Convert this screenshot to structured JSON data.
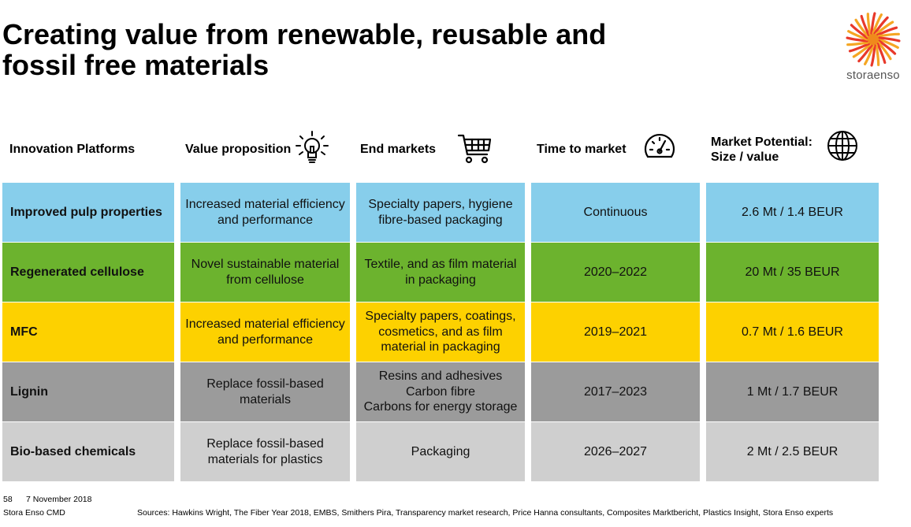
{
  "title": {
    "line1": "Creating value from renewable, reusable and",
    "line2": "fossil free materials"
  },
  "logo": {
    "text": "storaenso",
    "icon": "sun-logo-icon",
    "colors": [
      "#f5a623",
      "#e8392b"
    ]
  },
  "headers": {
    "platforms": "Innovation Platforms",
    "value": "Value proposition",
    "markets": "End markets",
    "time": "Time to market",
    "potential_line1": "Market Potential:",
    "potential_line2": "Size / value",
    "icons": [
      "lightbulb-icon",
      "shopping-cart-icon",
      "speedometer-icon",
      "globe-icon"
    ]
  },
  "rows": [
    {
      "color": "#87ceeb",
      "platform": "Improved pulp properties",
      "value": [
        "Increased material efficiency",
        "and performance"
      ],
      "markets": [
        "Specialty papers, hygiene",
        "fibre-based packaging"
      ],
      "time": "Continuous",
      "potential": "2.6 Mt / 1.4 BEUR"
    },
    {
      "color": "#6cb32e",
      "platform": "Regenerated cellulose",
      "value": [
        "Novel sustainable material",
        "from cellulose"
      ],
      "markets": [
        "Textile, and as film material",
        "in packaging"
      ],
      "time": "2020–2022",
      "potential": "20 Mt / 35 BEUR"
    },
    {
      "color": "#fdd100",
      "platform": "MFC",
      "value": [
        "Increased material efficiency",
        "and performance"
      ],
      "markets": [
        "Specialty papers, coatings,",
        "cosmetics, and as film",
        "material in packaging"
      ],
      "time": "2019–2021",
      "potential": "0.7 Mt / 1.6 BEUR"
    },
    {
      "color": "#9b9b9b",
      "platform": "Lignin",
      "value": [
        "Replace fossil-based",
        "materials"
      ],
      "markets": [
        "Resins and adhesives",
        "Carbon fibre",
        "Carbons for energy storage"
      ],
      "time": "2017–2023",
      "potential": "1 Mt / 1.7 BEUR"
    },
    {
      "color": "#cfcfcf",
      "platform": "Bio-based chemicals",
      "value": [
        "Replace fossil-based",
        "materials for plastics"
      ],
      "markets": [
        "Packaging"
      ],
      "time": "2026–2027",
      "potential": "2 Mt / 2.5 BEUR"
    }
  ],
  "footer": {
    "page": "58",
    "date": "7 November 2018",
    "event": "Stora Enso CMD",
    "sources": "Sources: Hawkins Wright, The Fiber Year 2018, EMBS, Smithers Pira, Transparency market research, Price Hanna consultants, Composites Marktbericht, Plastics Insight, Stora Enso experts"
  }
}
